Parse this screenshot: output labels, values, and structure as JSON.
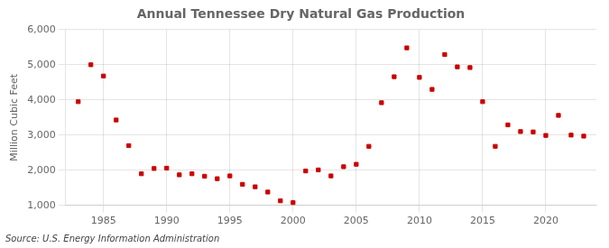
{
  "chart_data": {
    "type": "scatter",
    "title": "Annual Tennessee Dry Natural Gas Production",
    "ylabel": "Million Cubic Feet",
    "source": "Source: U.S. Energy Information Administration",
    "x": [
      1983,
      1984,
      1985,
      1986,
      1987,
      1988,
      1989,
      1990,
      1991,
      1992,
      1993,
      1994,
      1995,
      1996,
      1997,
      1998,
      1999,
      2000,
      2001,
      2002,
      2003,
      2004,
      2005,
      2006,
      2007,
      2008,
      2009,
      2010,
      2011,
      2012,
      2013,
      2014,
      2015,
      2016,
      2017,
      2018,
      2019,
      2020,
      2021,
      2022,
      2023
    ],
    "values": [
      3950,
      5000,
      4680,
      3430,
      2700,
      1900,
      2050,
      2060,
      1870,
      1900,
      1830,
      1760,
      1840,
      1600,
      1530,
      1380,
      1130,
      1080,
      1980,
      2010,
      1840,
      2100,
      2170,
      2680,
      3920,
      4660,
      5480,
      4640,
      4300,
      5290,
      4940,
      4920,
      3950,
      2680,
      3290,
      3100,
      3090,
      2990,
      3560,
      3000,
      2970
    ],
    "color": "#cc0000",
    "marker": "square",
    "xlim": [
      1982,
      2024
    ],
    "xticks": [
      1985,
      1990,
      1995,
      2000,
      2005,
      2010,
      2015,
      2020
    ],
    "ylim": [
      1000,
      6000
    ],
    "yticks": [
      {
        "value": 1000,
        "label": "1,000"
      },
      {
        "value": 2000,
        "label": "2,000"
      },
      {
        "value": 3000,
        "label": "3,000"
      },
      {
        "value": 4000,
        "label": "4,000"
      },
      {
        "value": 5000,
        "label": "5,000"
      },
      {
        "value": 6000,
        "label": "6,000"
      }
    ],
    "grid": true
  }
}
